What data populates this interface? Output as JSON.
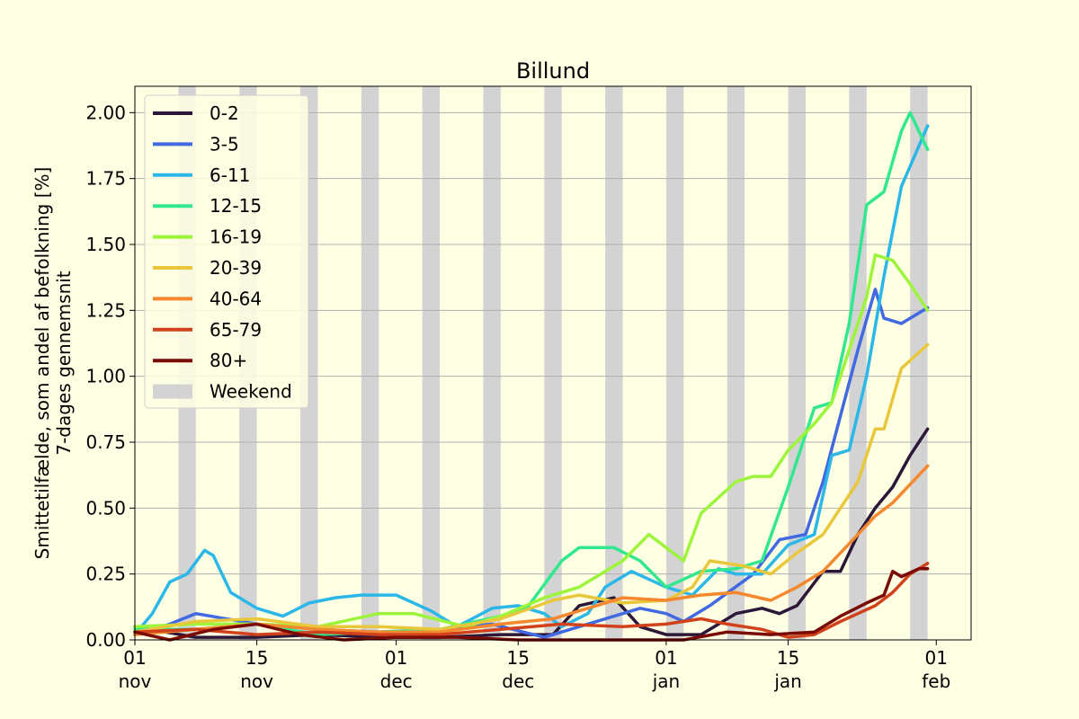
{
  "chart_data": {
    "type": "line",
    "title": "Billund",
    "ylabel_line1": "Smittetilfælde, som andel af befolkning [%]",
    "ylabel_line2": "7-dages gennemsnit",
    "xlabel": "",
    "ylim": [
      0,
      2.1
    ],
    "xlim": [
      "2021-11-01",
      "2022-02-05"
    ],
    "grid": "y",
    "legend_position": "upper-left",
    "x_ticks": [
      {
        "date": "2021-11-01",
        "day": "01",
        "month": "nov"
      },
      {
        "date": "2021-11-15",
        "day": "15",
        "month": "nov"
      },
      {
        "date": "2021-12-01",
        "day": "01",
        "month": "dec"
      },
      {
        "date": "2021-12-15",
        "day": "15",
        "month": "dec"
      },
      {
        "date": "2022-01-01",
        "day": "01",
        "month": "jan"
      },
      {
        "date": "2022-01-15",
        "day": "15",
        "month": "jan"
      },
      {
        "date": "2022-02-01",
        "day": "01",
        "month": "feb"
      }
    ],
    "y_ticks": [
      "0.00",
      "0.25",
      "0.50",
      "0.75",
      "1.00",
      "1.25",
      "1.50",
      "1.75",
      "2.00"
    ],
    "weekend_label": "Weekend",
    "weekend_color": "#d3d3d3",
    "weekend_start_dates": [
      "2021-11-06",
      "2021-11-13",
      "2021-11-20",
      "2021-11-27",
      "2021-12-04",
      "2021-12-11",
      "2021-12-18",
      "2021-12-25",
      "2022-01-01",
      "2022-01-08",
      "2022-01-15",
      "2022-01-22",
      "2022-01-29",
      "2022-02-05"
    ],
    "series": [
      {
        "name": "0-2",
        "color": "#2d1739",
        "x": [
          "2021-11-01",
          "2021-11-08",
          "2021-11-15",
          "2021-11-22",
          "2021-11-29",
          "2021-12-06",
          "2021-12-13",
          "2021-12-19",
          "2021-12-22",
          "2021-12-26",
          "2021-12-29",
          "2022-01-01",
          "2022-01-05",
          "2022-01-09",
          "2022-01-12",
          "2022-01-14",
          "2022-01-16",
          "2022-01-19",
          "2022-01-21",
          "2022-01-23",
          "2022-01-25",
          "2022-01-27",
          "2022-01-29",
          "2022-01-31"
        ],
        "values": [
          0.05,
          0.01,
          0.01,
          0.02,
          0.01,
          0.01,
          0.02,
          0.02,
          0.13,
          0.16,
          0.05,
          0.02,
          0.02,
          0.1,
          0.12,
          0.1,
          0.13,
          0.26,
          0.26,
          0.4,
          0.5,
          0.58,
          0.7,
          0.8
        ]
      },
      {
        "name": "3-5",
        "color": "#4169e1",
        "x": [
          "2021-11-01",
          "2021-11_05",
          "2021-11-08",
          "2021-11-15",
          "2021-11-22",
          "2021-11-29",
          "2021-12-06",
          "2021-12-12",
          "2021-12-18",
          "2021-12-22",
          "2021-12-27",
          "2021-12-29",
          "2022-01-01",
          "2022-01-03",
          "2022-01-06",
          "2022-01-11",
          "2022-01-14",
          "2022-01-17",
          "2022-01-19",
          "2022-01-21",
          "2022-01-23",
          "2022-01-25",
          "2022-01-26",
          "2022-01-28",
          "2022-01-31"
        ],
        "values": [
          0.02,
          0.06,
          0.1,
          0.06,
          0.04,
          0.03,
          0.04,
          0.06,
          0.01,
          0.05,
          0.1,
          0.12,
          0.1,
          0.07,
          0.13,
          0.25,
          0.38,
          0.4,
          0.6,
          0.85,
          1.1,
          1.33,
          1.22,
          1.2,
          1.26
        ]
      },
      {
        "name": "6-11",
        "color": "#2bb7e8",
        "x": [
          "2021-11-01",
          "2021-11-03",
          "2021-11-05",
          "2021-11-07",
          "2021-11-09",
          "2021-11-10",
          "2021-11-12",
          "2021-11-15",
          "2021-11-18",
          "2021-11-21",
          "2021-11-24",
          "2021-11-27",
          "2021-12-01",
          "2021-12-05",
          "2021-12-08",
          "2021-12-12",
          "2021-12-15",
          "2021-12-18",
          "2021-12-20",
          "2021-12-23",
          "2021-12-25",
          "2021-12-28",
          "2022-01-01",
          "2022-01-04",
          "2022-01-07",
          "2022-01-09",
          "2022-01-12",
          "2022-01-15",
          "2022-01-18",
          "2022-01-20",
          "2022-01-22",
          "2022-01-24",
          "2022-01-26",
          "2022-01-28",
          "2022-01-31"
        ],
        "values": [
          0.02,
          0.1,
          0.22,
          0.25,
          0.34,
          0.32,
          0.18,
          0.12,
          0.09,
          0.14,
          0.16,
          0.17,
          0.17,
          0.11,
          0.05,
          0.12,
          0.13,
          0.1,
          0.05,
          0.1,
          0.2,
          0.26,
          0.2,
          0.17,
          0.27,
          0.25,
          0.25,
          0.36,
          0.4,
          0.7,
          0.72,
          1.0,
          1.38,
          1.72,
          1.95
        ]
      },
      {
        "name": "12-15",
        "color": "#31e88e",
        "x": [
          "2021-11-01",
          "2021-11-08",
          "2021-11-15",
          "2021-11-22",
          "2021-11-29",
          "2021-12-06",
          "2021-12-13",
          "2021-12-16",
          "2021-12-20",
          "2021-12-22",
          "2021-12-26",
          "2021-12-29",
          "2022-01-01",
          "2022-01-05",
          "2022-01-09",
          "2022-01-12",
          "2022-01-15",
          "2022-01-18",
          "2022-01-20",
          "2022-01-22",
          "2022-01-24",
          "2022-01-26",
          "2022-01-28",
          "2022-01-29",
          "2022-01-31"
        ],
        "values": [
          0.04,
          0.04,
          0.06,
          0.02,
          0.03,
          0.04,
          0.09,
          0.12,
          0.3,
          0.35,
          0.35,
          0.3,
          0.2,
          0.26,
          0.27,
          0.3,
          0.58,
          0.88,
          0.9,
          1.2,
          1.65,
          1.7,
          1.93,
          2.0,
          1.86
        ]
      },
      {
        "name": "16-19",
        "color": "#9cf53b",
        "x": [
          "2021-11-01",
          "2021-11-08",
          "2021-11-15",
          "2021-11-22",
          "2021-11-29",
          "2021-12-03",
          "2021-12-09",
          "2021-12-13",
          "2021-12-18",
          "2021-12-22",
          "2021-12-27",
          "2021-12-30",
          "2022-01-01",
          "2022-01-03",
          "2022-01-05",
          "2022-01-09",
          "2022-01-11",
          "2022-01-13",
          "2022-01-15",
          "2022-01-18",
          "2022-01-20",
          "2022-01-22",
          "2022-01-24",
          "2022-01-25",
          "2022-01-27",
          "2022-01-29",
          "2022-01-31"
        ],
        "values": [
          0.05,
          0.06,
          0.06,
          0.05,
          0.1,
          0.1,
          0.05,
          0.09,
          0.16,
          0.2,
          0.3,
          0.4,
          0.35,
          0.3,
          0.48,
          0.6,
          0.62,
          0.62,
          0.72,
          0.82,
          0.9,
          1.1,
          1.3,
          1.46,
          1.44,
          1.35,
          1.25
        ]
      },
      {
        "name": "20-39",
        "color": "#e8c83a",
        "x": [
          "2021-11-01",
          "2021-11-08",
          "2021-11-15",
          "2021-11-22",
          "2021-11-29",
          "2021-12-06",
          "2021-12-13",
          "2021-12-19",
          "2021-12-22",
          "2021-12-27",
          "2022-01-01",
          "2022-01-04",
          "2022-01-06",
          "2022-01-10",
          "2022-01-13",
          "2022-01-16",
          "2022-01-19",
          "2022-01-21",
          "2022-01-23",
          "2022-01-25",
          "2022-01-26",
          "2022-01-28",
          "2022-01-31"
        ],
        "values": [
          0.03,
          0.07,
          0.08,
          0.05,
          0.05,
          0.04,
          0.08,
          0.15,
          0.17,
          0.14,
          0.15,
          0.2,
          0.3,
          0.28,
          0.25,
          0.33,
          0.4,
          0.5,
          0.6,
          0.8,
          0.8,
          1.03,
          1.12
        ]
      },
      {
        "name": "40-64",
        "color": "#f5882e",
        "x": [
          "2021-11-01",
          "2021-11-08",
          "2021-11-15",
          "2021-11-22",
          "2021-11-29",
          "2021-12-06",
          "2021-12-13",
          "2021-12-19",
          "2021-12-23",
          "2021-12-27",
          "2022-01-01",
          "2022-01-05",
          "2022-01-09",
          "2022-01-13",
          "2022-01-16",
          "2022-01-19",
          "2022-01-21",
          "2022-01-23",
          "2022-01-25",
          "2022-01-27",
          "2022-01-29",
          "2022-01-31"
        ],
        "values": [
          0.02,
          0.04,
          0.06,
          0.04,
          0.03,
          0.03,
          0.06,
          0.08,
          0.12,
          0.16,
          0.15,
          0.17,
          0.18,
          0.15,
          0.2,
          0.26,
          0.33,
          0.4,
          0.47,
          0.52,
          0.59,
          0.66
        ]
      },
      {
        "name": "65-79",
        "color": "#d1421c",
        "x": [
          "2021-11-01",
          "2021-11-08",
          "2021-11-15",
          "2021-11-22",
          "2021-11-29",
          "2021-12-06",
          "2021-12-13",
          "2021-12-20",
          "2021-12-27",
          "2022-01-01",
          "2022-01-05",
          "2022-01-08",
          "2022-01-12",
          "2022-01-15",
          "2022-01-18",
          "2022-01-21",
          "2022-01-23",
          "2022-01-25",
          "2022-01-27",
          "2022-01-29",
          "2022-01-31"
        ],
        "values": [
          0.03,
          0.04,
          0.02,
          0.03,
          0.02,
          0.02,
          0.04,
          0.06,
          0.05,
          0.06,
          0.08,
          0.06,
          0.04,
          0.01,
          0.02,
          0.07,
          0.1,
          0.13,
          0.18,
          0.25,
          0.29
        ]
      },
      {
        "name": "80+",
        "color": "#7a0a04",
        "x": [
          "2021-11-01",
          "2021-11-05",
          "2021-11-10",
          "2021-11-15",
          "2021-11-20",
          "2021-11-25",
          "2021-12-01",
          "2021-12-08",
          "2021-12-15",
          "2021-12-22",
          "2021-12-29",
          "2022-01-03",
          "2022-01-08",
          "2022-01-13",
          "2022-01-18",
          "2022-01-21",
          "2022-01-24",
          "2022-01-26",
          "2022-01-27",
          "2022-01-28",
          "2022-01-30",
          "2022-01-31"
        ],
        "values": [
          0.03,
          0.0,
          0.04,
          0.06,
          0.02,
          0.0,
          0.01,
          0.01,
          0.0,
          0.0,
          0.0,
          0.0,
          0.03,
          0.02,
          0.03,
          0.09,
          0.14,
          0.17,
          0.26,
          0.24,
          0.27,
          0.27
        ]
      }
    ]
  }
}
